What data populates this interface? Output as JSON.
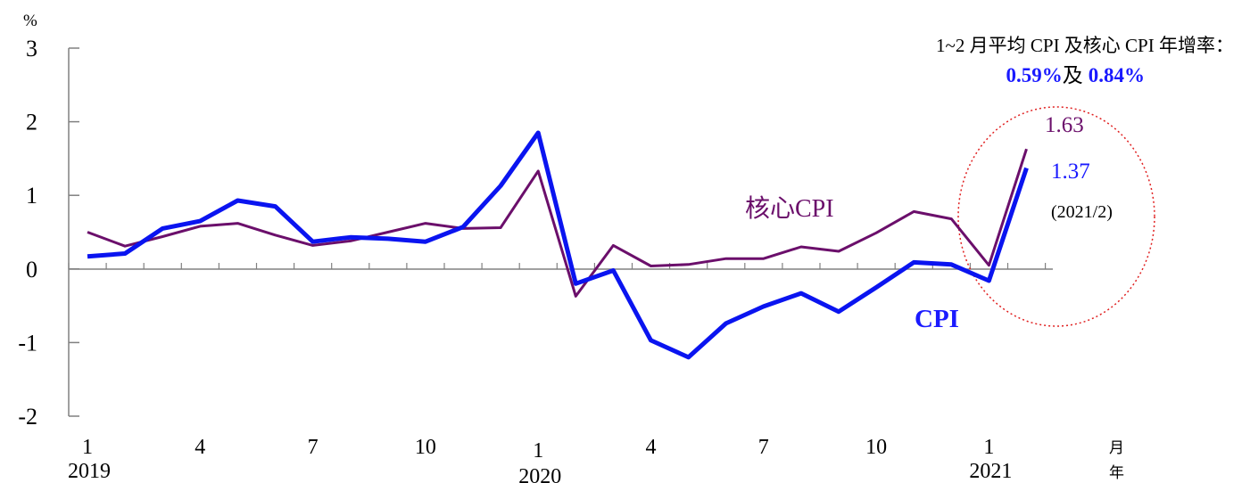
{
  "chart_data": {
    "type": "line",
    "y_unit": "%",
    "ylim": [
      -2,
      3
    ],
    "y_ticks": [
      "3",
      "2",
      "1",
      "0",
      "-1",
      "-2"
    ],
    "x_month_labels": [
      "1",
      "4",
      "7",
      "10",
      "1",
      "4",
      "7",
      "10",
      "1"
    ],
    "x_year_labels": [
      "2019",
      "2020",
      "2021"
    ],
    "x_axis_unit_month": "月",
    "x_axis_unit_year": "年",
    "x": [
      "2019/1",
      "2019/2",
      "2019/3",
      "2019/4",
      "2019/5",
      "2019/6",
      "2019/7",
      "2019/8",
      "2019/9",
      "2019/10",
      "2019/11",
      "2019/12",
      "2020/1",
      "2020/2",
      "2020/3",
      "2020/4",
      "2020/5",
      "2020/6",
      "2020/7",
      "2020/8",
      "2020/9",
      "2020/10",
      "2020/11",
      "2020/12",
      "2021/1",
      "2021/2"
    ],
    "series": [
      {
        "name": "CPI",
        "color": "#0a14f0",
        "values": [
          0.17,
          0.21,
          0.55,
          0.65,
          0.93,
          0.85,
          0.37,
          0.43,
          0.41,
          0.37,
          0.57,
          1.13,
          1.85,
          -0.2,
          -0.02,
          -0.97,
          -1.2,
          -0.74,
          -0.51,
          -0.33,
          -0.58,
          -0.25,
          0.09,
          0.06,
          -0.16,
          1.37
        ]
      },
      {
        "name": "核心CPI",
        "color": "#6b0f6b",
        "values": [
          0.5,
          0.31,
          0.44,
          0.58,
          0.62,
          0.46,
          0.32,
          0.38,
          0.5,
          0.62,
          0.55,
          0.56,
          1.33,
          -0.37,
          0.32,
          0.04,
          0.06,
          0.14,
          0.14,
          0.3,
          0.24,
          0.49,
          0.78,
          0.68,
          0.05,
          1.63
        ]
      }
    ],
    "data_labels": {
      "core_last": "1.63",
      "cpi_last": "1.37",
      "period": "(2021/2)"
    },
    "annotation": {
      "line1": "1~2 月平均 CPI 及核心 CPI 年增率：",
      "value1": "0.59%",
      "connector": "及",
      "value2": "0.84%"
    }
  }
}
